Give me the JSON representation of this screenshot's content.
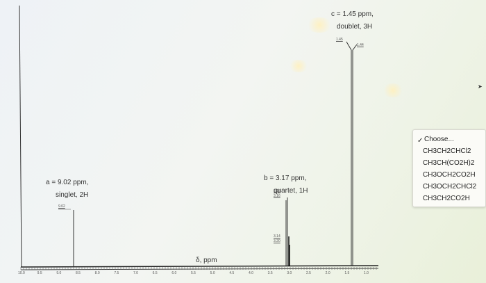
{
  "x_axis": {
    "label": "δ, ppm",
    "ticks": [
      "10.0",
      "9.5",
      "9.0",
      "8.5",
      "8.0",
      "7.5",
      "7.0",
      "6.5",
      "6.0",
      "5.5",
      "5.0",
      "4.5",
      "4.0",
      "3.5",
      "3.0",
      "2.5",
      "2.0",
      "1.5",
      "1.0"
    ]
  },
  "peaks": {
    "a": {
      "line1": "a = 9.02 ppm,",
      "line2": "singlet, 2H",
      "value_label": "9.02"
    },
    "b": {
      "line1": "b = 3.17 ppm,",
      "line2": "quartet, 1H",
      "upper_labels": [
        "3.18",
        "3.16"
      ],
      "lower_labels": [
        "3.14",
        "3.20"
      ]
    },
    "c": {
      "line1": "c = 1.45 ppm,",
      "line2": "doublet, 3H",
      "labels": [
        "1.45",
        "1.44"
      ]
    }
  },
  "dropdown": {
    "selected": "Choose...",
    "options": [
      "CH3CH2CHCl2",
      "CH3CH(CO2H)2",
      "CH3OCH2CO2H",
      "CH3OCH2CHCl2",
      "CH3CH2CO2H"
    ]
  }
}
